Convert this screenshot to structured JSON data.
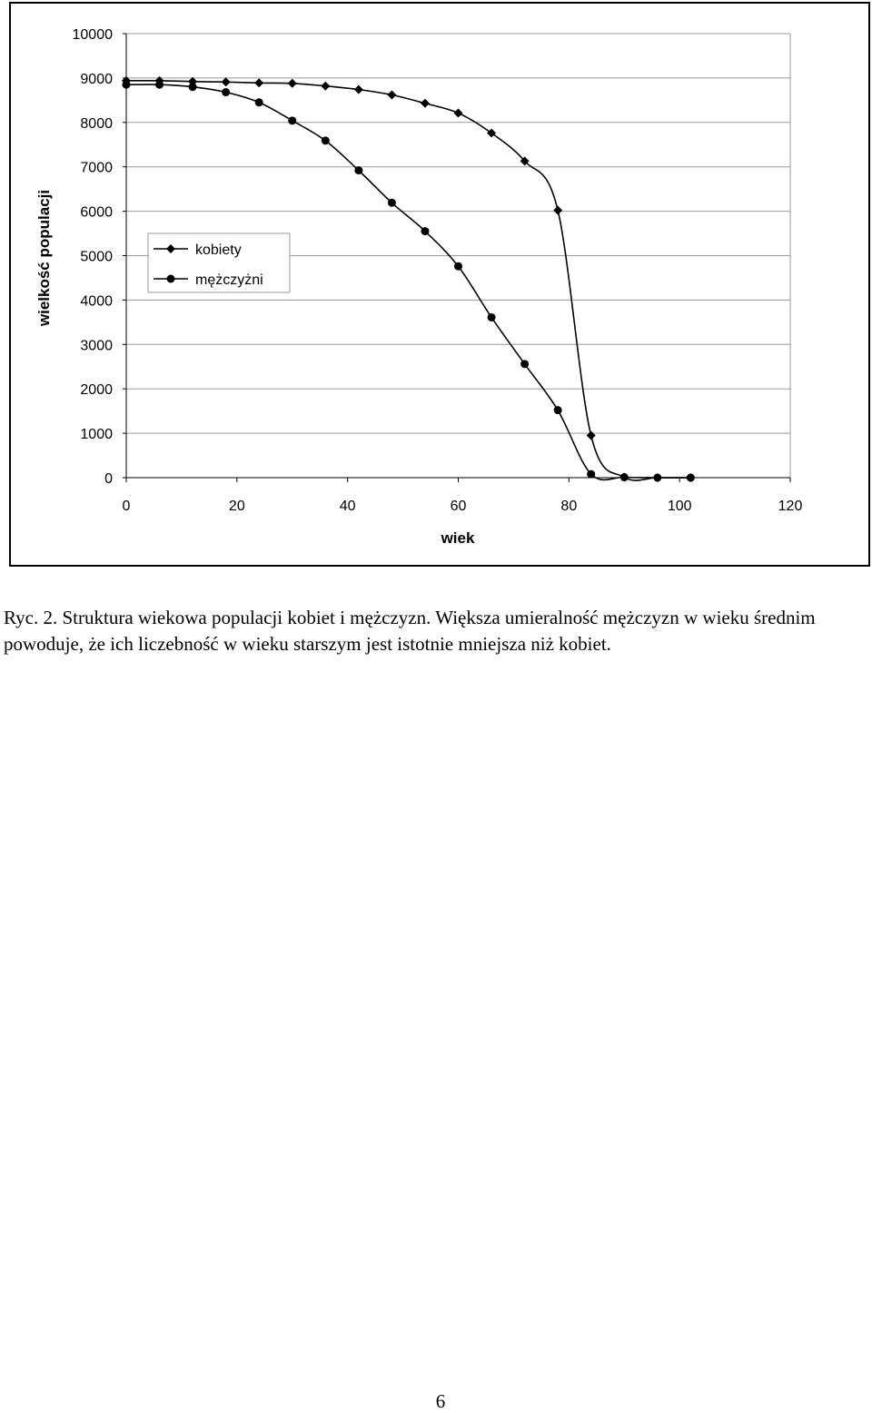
{
  "chart_data": {
    "type": "line",
    "title": "",
    "xlabel": "wiek",
    "ylabel": "wielkość populacji",
    "xlim": [
      0,
      120
    ],
    "ylim": [
      0,
      10000
    ],
    "x_ticks": [
      0,
      20,
      40,
      60,
      80,
      100,
      120
    ],
    "y_ticks": [
      0,
      1000,
      2000,
      3000,
      4000,
      5000,
      6000,
      7000,
      8000,
      9000,
      10000
    ],
    "grid": "horizontal",
    "legend_position": "upper-left inside plot",
    "series": [
      {
        "name": "kobiety",
        "marker": "diamond",
        "color": "#000000",
        "x": [
          0,
          6,
          12,
          18,
          24,
          30,
          36,
          42,
          48,
          54,
          60,
          66,
          72,
          78,
          84,
          90,
          96,
          102
        ],
        "y": [
          8940,
          8940,
          8920,
          8910,
          8890,
          8880,
          8820,
          8740,
          8620,
          8430,
          8210,
          7760,
          7130,
          6020,
          950,
          10,
          0,
          0
        ]
      },
      {
        "name": "mężczyżni",
        "marker": "circle",
        "color": "#000000",
        "x": [
          0,
          6,
          12,
          18,
          24,
          30,
          36,
          42,
          48,
          54,
          60,
          66,
          72,
          78,
          84,
          90,
          96,
          102
        ],
        "y": [
          8850,
          8850,
          8800,
          8680,
          8450,
          8040,
          7590,
          6920,
          6190,
          5550,
          4760,
          3610,
          2560,
          1520,
          80,
          10,
          0,
          0
        ]
      }
    ]
  },
  "caption": {
    "text": "Ryc. 2. Struktura wiekowa populacji kobiet i mężczyzn. Większa umieralność mężczyzn w wieku średnim powoduje, że ich liczebność w wieku starszym jest istotnie mniejsza niż kobiet."
  },
  "page_number": "6"
}
